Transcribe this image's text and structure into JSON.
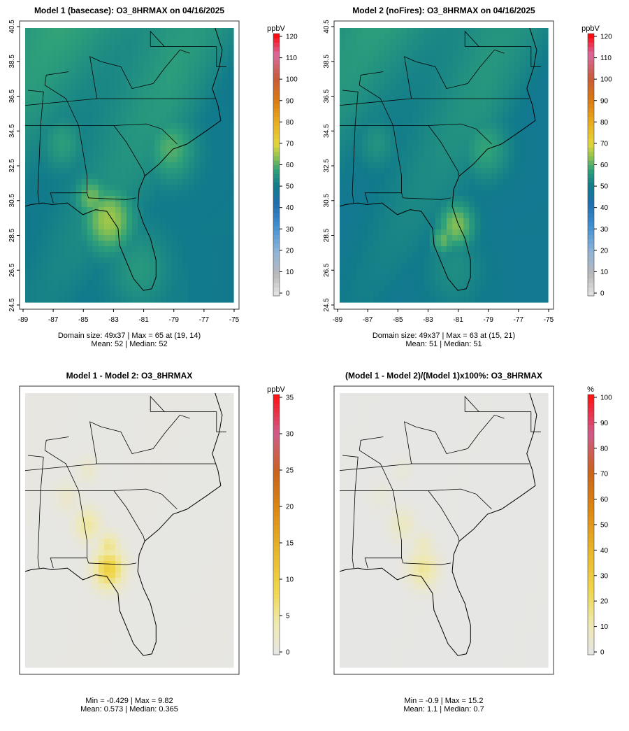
{
  "panels": [
    {
      "id": "model1",
      "title": "Model 1 (basecase): O3_8HRMAX on 04/16/2025",
      "kind": "abs",
      "legend_title": "ppbV",
      "legend_ticks": [
        "0",
        "10",
        "20",
        "30",
        "40",
        "50",
        "60",
        "70",
        "80",
        "90",
        "100",
        "110",
        "120"
      ],
      "legend_max": 120,
      "lat_ticks": [
        "24.5",
        "26.5",
        "28.5",
        "30.5",
        "32.5",
        "34.5",
        "36.5",
        "38.5",
        "40.5"
      ],
      "lon_ticks": [
        "-89",
        "-87",
        "-85",
        "-83",
        "-81",
        "-79",
        "-77",
        "-75"
      ],
      "stats_line1": "Domain size: 49x37 | Max = 65 at (19, 14)",
      "stats_line2": "Mean: 52 |  Median: 52",
      "hotspots": [
        [
          0.4,
          0.7,
          0.12,
          65
        ],
        [
          0.32,
          0.62,
          0.08,
          62
        ],
        [
          0.7,
          0.44,
          0.12,
          60
        ],
        [
          0.18,
          0.42,
          0.1,
          57
        ],
        [
          0.55,
          0.88,
          0.15,
          56
        ]
      ],
      "base_value": 50
    },
    {
      "id": "model2",
      "title": "Model 2 (noFires): O3_8HRMAX on 04/16/2025",
      "kind": "abs",
      "legend_title": "ppbV",
      "legend_ticks": [
        "0",
        "10",
        "20",
        "30",
        "40",
        "50",
        "60",
        "70",
        "80",
        "90",
        "100",
        "110",
        "120"
      ],
      "legend_max": 120,
      "lat_ticks": [
        "24.5",
        "26.5",
        "28.5",
        "30.5",
        "32.5",
        "34.5",
        "36.5",
        "38.5",
        "40.5"
      ],
      "lon_ticks": [
        "-89",
        "-87",
        "-85",
        "-83",
        "-81",
        "-79",
        "-77",
        "-75"
      ],
      "stats_line1": "Domain size: 49x37 | Max = 63 at (15, 21)",
      "stats_line2": "Mean: 51 |  Median: 51",
      "hotspots": [
        [
          0.56,
          0.72,
          0.09,
          63
        ],
        [
          0.5,
          0.77,
          0.06,
          61
        ],
        [
          0.7,
          0.44,
          0.12,
          58
        ],
        [
          0.18,
          0.42,
          0.1,
          55
        ],
        [
          0.55,
          0.88,
          0.15,
          54
        ]
      ],
      "base_value": 49
    },
    {
      "id": "diff",
      "title": "Model 1 - Model 2: O3_8HRMAX",
      "kind": "diff",
      "legend_title": "ppbV",
      "legend_ticks": [
        "0",
        "5",
        "10",
        "15",
        "20",
        "25",
        "30",
        "35"
      ],
      "legend_max": 35,
      "stats_line1": "Min = -0.429 | Max = 9.82",
      "stats_line2": "Mean: 0.573 |  Median: 0.365",
      "hotspots": [
        [
          0.4,
          0.64,
          0.07,
          9.8
        ],
        [
          0.3,
          0.48,
          0.06,
          5
        ],
        [
          0.4,
          0.56,
          0.05,
          6
        ],
        [
          0.3,
          0.28,
          0.05,
          2
        ],
        [
          0.2,
          0.38,
          0.06,
          2
        ]
      ],
      "base_value": 0.2
    },
    {
      "id": "pct",
      "title": "(Model 1 - Model 2)/(Model 1)x100%: O3_8HRMAX",
      "kind": "diff",
      "legend_title": "%",
      "legend_ticks": [
        "0",
        "10",
        "20",
        "30",
        "40",
        "50",
        "60",
        "70",
        "80",
        "90",
        "100"
      ],
      "legend_max": 100,
      "stats_line1": "Min = -0.9 | Max = 15.2",
      "stats_line2": "Mean: 1.1 |  Median: 0.7",
      "hotspots": [
        [
          0.4,
          0.64,
          0.07,
          15
        ],
        [
          0.3,
          0.48,
          0.06,
          8
        ],
        [
          0.4,
          0.56,
          0.05,
          9
        ],
        [
          0.3,
          0.28,
          0.05,
          3
        ],
        [
          0.2,
          0.38,
          0.06,
          3
        ]
      ],
      "base_value": 0.3
    }
  ],
  "chart_data": [
    {
      "type": "heatmap",
      "title": "Model 1 (basecase): O3_8HRMAX on 04/16/2025",
      "legend": "ppbV",
      "colorbar_range": [
        0,
        120
      ],
      "x_ticks": [
        -89,
        -87,
        -85,
        -83,
        -81,
        -79,
        -77,
        -75
      ],
      "y_ticks": [
        24.5,
        26.5,
        28.5,
        30.5,
        32.5,
        34.5,
        36.5,
        38.5,
        40.5
      ],
      "domain_size": "49x37",
      "max": 65,
      "max_at": [
        19,
        14
      ],
      "mean": 52,
      "median": 52
    },
    {
      "type": "heatmap",
      "title": "Model 2 (noFires): O3_8HRMAX on 04/16/2025",
      "legend": "ppbV",
      "colorbar_range": [
        0,
        120
      ],
      "x_ticks": [
        -89,
        -87,
        -85,
        -83,
        -81,
        -79,
        -77,
        -75
      ],
      "y_ticks": [
        24.5,
        26.5,
        28.5,
        30.5,
        32.5,
        34.5,
        36.5,
        38.5,
        40.5
      ],
      "domain_size": "49x37",
      "max": 63,
      "max_at": [
        15,
        21
      ],
      "mean": 51,
      "median": 51
    },
    {
      "type": "heatmap",
      "title": "Model 1 - Model 2: O3_8HRMAX",
      "legend": "ppbV",
      "colorbar_range": [
        0,
        35
      ],
      "min": -0.429,
      "max": 9.82,
      "mean": 0.573,
      "median": 0.365
    },
    {
      "type": "heatmap",
      "title": "(Model 1 - Model 2)/(Model 1)x100%: O3_8HRMAX",
      "legend": "%",
      "colorbar_range": [
        0,
        100
      ],
      "min": -0.9,
      "max": 15.2,
      "mean": 1.1,
      "median": 0.7
    }
  ]
}
